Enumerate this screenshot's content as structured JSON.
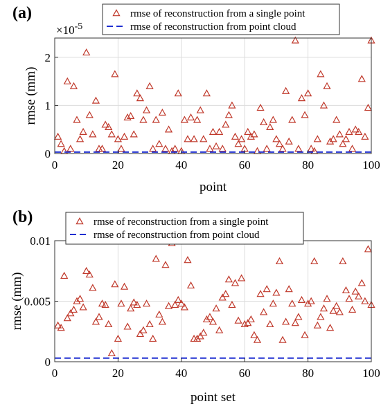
{
  "chart_data": [
    {
      "panel_label": "(a)",
      "type": "scatter",
      "xlabel": "point",
      "ylabel": "rmse (mm)",
      "y_exponent": "×10^-5",
      "y_exponent_base": "×10",
      "y_exponent_power": "-5",
      "xlim": [
        0,
        100
      ],
      "ylim": [
        0,
        2.4
      ],
      "xticks": [
        0,
        20,
        40,
        60,
        80,
        100
      ],
      "yticks": [
        0,
        1,
        2
      ],
      "grid": true,
      "legend_position": "top",
      "series": [
        {
          "name": "rmse of reconstruction from a single point",
          "marker": "triangle",
          "color": "#c0392b",
          "x": [
            1,
            2,
            3,
            4,
            5,
            6,
            7,
            8,
            9,
            10,
            11,
            12,
            13,
            14,
            15,
            16,
            17,
            18,
            19,
            20,
            21,
            22,
            23,
            24,
            25,
            26,
            27,
            28,
            29,
            30,
            31,
            32,
            33,
            34,
            35,
            36,
            37,
            38,
            39,
            40,
            41,
            42,
            43,
            44,
            45,
            46,
            47,
            48,
            49,
            50,
            51,
            52,
            53,
            54,
            55,
            56,
            57,
            58,
            59,
            60,
            61,
            62,
            63,
            64,
            65,
            66,
            67,
            68,
            69,
            70,
            71,
            72,
            73,
            74,
            75,
            76,
            77,
            78,
            79,
            80,
            81,
            82,
            83,
            84,
            85,
            86,
            87,
            88,
            89,
            90,
            91,
            92,
            93,
            94,
            95,
            96,
            97,
            98,
            99,
            100
          ],
          "y": [
            0.35,
            0.2,
            0.05,
            1.5,
            0.1,
            1.4,
            0.7,
            0.3,
            0.45,
            2.1,
            0.8,
            0.4,
            1.1,
            0.1,
            0.1,
            0.6,
            0.55,
            0.4,
            1.65,
            0.3,
            0.1,
            0.35,
            0.75,
            0.78,
            0.4,
            1.25,
            1.15,
            0.7,
            0.9,
            1.4,
            0.1,
            0.7,
            0.2,
            0.85,
            0.1,
            0.5,
            0.05,
            0.1,
            1.25,
            0.05,
            0.7,
            0.3,
            0.75,
            0.3,
            0.7,
            0.9,
            0.3,
            1.25,
            0.1,
            0.45,
            0.15,
            0.45,
            0.1,
            0.6,
            0.8,
            1.0,
            0.35,
            0.2,
            0.3,
            0.1,
            0.45,
            0.35,
            0.4,
            0.05,
            0.95,
            0.65,
            0.1,
            0.55,
            0.7,
            0.3,
            0.2,
            0.1,
            1.3,
            0.25,
            0.7,
            2.35,
            0.1,
            1.15,
            0.8,
            1.25,
            0.1,
            0.05,
            0.3,
            1.65,
            1.0,
            1.4,
            0.25,
            0.3,
            0.7,
            0.4,
            0.2,
            0.3,
            0.45,
            0.1,
            0.5,
            0.45,
            1.55,
            0.35,
            0.95,
            2.35
          ]
        },
        {
          "name": "rmse of reconstruction from point cloud",
          "type": "line",
          "style": "dashed",
          "color": "#1f2fd1",
          "x": [
            0,
            100
          ],
          "y": [
            0.03,
            0.03
          ]
        }
      ]
    },
    {
      "panel_label": "(b)",
      "type": "scatter",
      "xlabel": "point set",
      "ylabel": "rmse (mm)",
      "xlim": [
        0,
        100
      ],
      "ylim": [
        0,
        0.01
      ],
      "xticks": [
        0,
        20,
        40,
        60,
        80,
        100
      ],
      "yticks": [
        0,
        0.005,
        0.01
      ],
      "ytick_labels": [
        "0",
        "0.005",
        "0.01"
      ],
      "grid": true,
      "legend_position": "top",
      "series": [
        {
          "name": "rmse of reconstruction from a single point",
          "marker": "triangle",
          "color": "#c0392b",
          "x": [
            1,
            2,
            3,
            4,
            5,
            6,
            7,
            8,
            9,
            10,
            11,
            12,
            13,
            14,
            15,
            16,
            17,
            18,
            19,
            20,
            21,
            22,
            23,
            24,
            25,
            26,
            27,
            28,
            29,
            30,
            31,
            32,
            33,
            34,
            35,
            36,
            37,
            38,
            39,
            40,
            41,
            42,
            43,
            44,
            45,
            46,
            47,
            48,
            49,
            50,
            51,
            52,
            53,
            54,
            55,
            56,
            57,
            58,
            59,
            60,
            61,
            62,
            63,
            64,
            65,
            66,
            67,
            68,
            69,
            70,
            71,
            72,
            73,
            74,
            75,
            76,
            77,
            78,
            79,
            80,
            81,
            82,
            83,
            84,
            85,
            86,
            87,
            88,
            89,
            90,
            91,
            92,
            93,
            94,
            95,
            96,
            97,
            98,
            99,
            100
          ],
          "y": [
            0.003,
            0.0028,
            0.0071,
            0.0036,
            0.004,
            0.0043,
            0.005,
            0.0052,
            0.0045,
            0.0075,
            0.0072,
            0.0061,
            0.0033,
            0.0037,
            0.0048,
            0.0047,
            0.0031,
            0.0007,
            0.0064,
            0.0019,
            0.0048,
            0.0062,
            0.0029,
            0.0044,
            0.0049,
            0.0047,
            0.0023,
            0.0026,
            0.0048,
            0.0031,
            0.0019,
            0.0085,
            0.0039,
            0.0033,
            0.008,
            0.0046,
            0.0098,
            0.0047,
            0.0051,
            0.0048,
            0.0045,
            0.0084,
            0.0063,
            0.0019,
            0.0019,
            0.0021,
            0.0024,
            0.0035,
            0.0037,
            0.0033,
            0.0044,
            0.0026,
            0.0053,
            0.0056,
            0.0068,
            0.0047,
            0.0065,
            0.0034,
            0.0069,
            0.0031,
            0.0032,
            0.0035,
            0.0022,
            0.0018,
            0.0056,
            0.0041,
            0.006,
            0.0031,
            0.0048,
            0.0057,
            0.0083,
            0.0018,
            0.0033,
            0.006,
            0.0048,
            0.0032,
            0.0037,
            0.0051,
            0.0022,
            0.0048,
            0.005,
            0.0083,
            0.003,
            0.0037,
            0.0044,
            0.0052,
            0.0028,
            0.0042,
            0.0046,
            0.0041,
            0.0083,
            0.0059,
            0.0052,
            0.0043,
            0.0058,
            0.0054,
            0.0065,
            0.005,
            0.0093,
            0.0047
          ]
        },
        {
          "name": "rmse of reconstruction from point cloud",
          "type": "line",
          "style": "dashed",
          "color": "#1f2fd1",
          "x": [
            0,
            100
          ],
          "y": [
            0.0003,
            0.0003
          ]
        }
      ]
    }
  ]
}
